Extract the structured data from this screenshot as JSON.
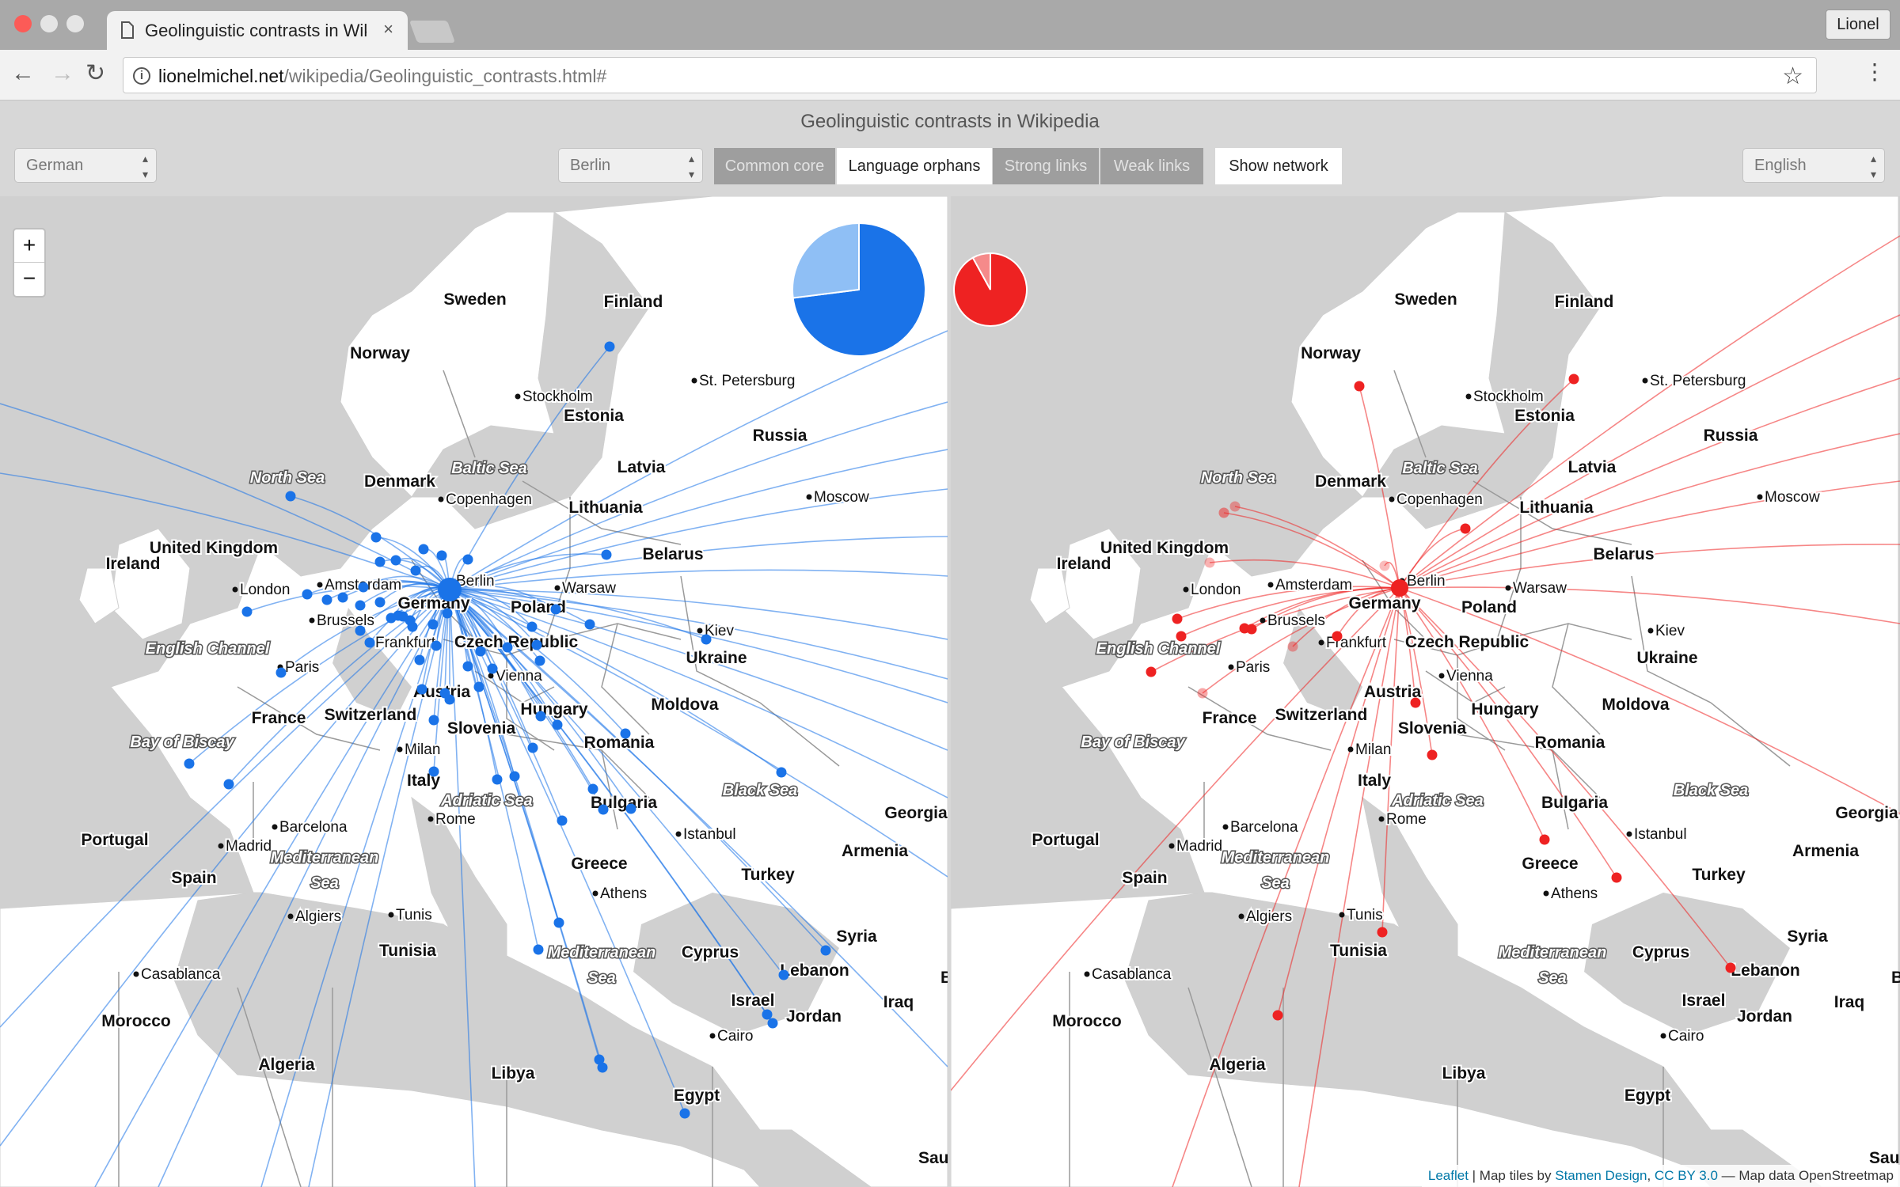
{
  "browser": {
    "tab_title": "Geolinguistic contrasts in Wiki",
    "tab_close": "×",
    "profile": "Lionel",
    "url_domain": "lionelmichel.net",
    "url_path": "/wikipedia/Geolinguistic_contrasts.html#",
    "back": "←",
    "forward": "→",
    "reload": "↻",
    "star": "☆",
    "menu": "⋮",
    "info": "i"
  },
  "page": {
    "title": "Geolinguistic contrasts in Wikipedia",
    "left_language": "German",
    "right_language": "English",
    "city": "Berlin",
    "buttons": {
      "common_core": "Common core",
      "language_orphans": "Language orphans",
      "strong_links": "Strong links",
      "weak_links": "Weak links",
      "show_network": "Show network"
    },
    "select_arrow": "▴▾",
    "zoom_in": "+",
    "zoom_out": "−"
  },
  "map": {
    "countries": [
      "Sweden",
      "Finland",
      "Norway",
      "Estonia",
      "Russia",
      "Latvia",
      "Denmark",
      "Lithuania",
      "United Kingdom",
      "Belarus",
      "Ireland",
      "Poland",
      "Germany",
      "Ukraine",
      "Czech Republic",
      "France",
      "Switzerland",
      "Austria",
      "Moldova",
      "Hungary",
      "Slovenia",
      "Romania",
      "Italy",
      "Bulgaria",
      "Georgia",
      "Portugal",
      "Armenia",
      "Spain",
      "Greece",
      "Turkey",
      "Tunisia",
      "Syria",
      "Cyprus",
      "Lebanon",
      "Morocco",
      "Israel",
      "Iraq",
      "Jordan",
      "Algeria",
      "Libya",
      "Egypt"
    ],
    "cities": [
      "Stockholm",
      "St. Petersburg",
      "Copenhagen",
      "Moscow",
      "London",
      "Amsterdam",
      "Berlin",
      "Warsaw",
      "Brussels",
      "Frankfurt",
      "Kiev",
      "Paris",
      "Vienna",
      "Milan",
      "Barcelona",
      "Rome",
      "Madrid",
      "Istanbul",
      "Athens",
      "Algiers",
      "Tunis",
      "Casablanca",
      "Cairo"
    ],
    "seas": [
      "North Sea",
      "Baltic Sea",
      "English Channel",
      "Bay of Biscay",
      "Adriatic Sea",
      "Black Sea",
      "Mediterranean Sea",
      "Mediterranean Sea"
    ],
    "cut_labels": [
      "Bag",
      "Saudi A"
    ]
  },
  "colors": {
    "left_accent": "#1a73e8",
    "right_accent": "#ee2222"
  },
  "pies": {
    "left": {
      "common_core": 0.73,
      "orphans": 0.27
    },
    "right": {
      "common_core": 0.92,
      "orphans": 0.08
    }
  },
  "attribution": {
    "leaflet": "Leaflet",
    "tiles": " | Map tiles by ",
    "stamen": "Stamen Design",
    "sep": ", ",
    "license": "CC BY 3.0",
    "data": " — Map data OpenStreetmap"
  }
}
